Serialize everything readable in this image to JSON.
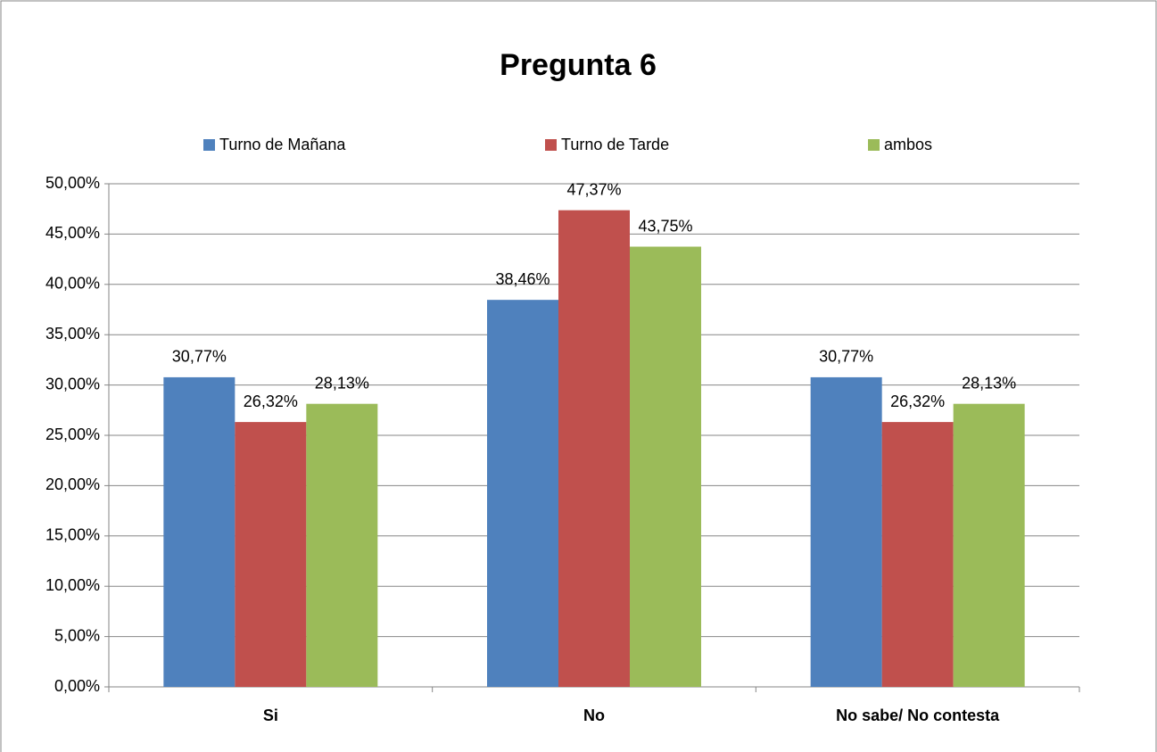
{
  "chart_data": {
    "type": "bar",
    "title": "Pregunta 6",
    "categories": [
      "Si",
      "No",
      "No sabe/ No contesta"
    ],
    "series": [
      {
        "name": "Turno de Mañana",
        "color": "#4f81bd",
        "values": [
          30.77,
          38.46,
          30.77
        ],
        "value_labels": [
          "30,77%",
          "38,46%",
          "30,77%"
        ]
      },
      {
        "name": "Turno de Tarde",
        "color": "#c0504d",
        "values": [
          26.32,
          47.37,
          26.32
        ],
        "value_labels": [
          "26,32%",
          "47,37%",
          "26,32%"
        ]
      },
      {
        "name": "ambos",
        "color": "#9bbb59",
        "values": [
          28.13,
          43.75,
          28.13
        ],
        "value_labels": [
          "28,13%",
          "43,75%",
          "28,13%"
        ]
      }
    ],
    "ylim": [
      0,
      50
    ],
    "yticks": [
      {
        "value": 0,
        "label": "0,00%"
      },
      {
        "value": 5,
        "label": "5,00%"
      },
      {
        "value": 10,
        "label": "10,00%"
      },
      {
        "value": 15,
        "label": "15,00%"
      },
      {
        "value": 20,
        "label": "20,00%"
      },
      {
        "value": 25,
        "label": "25,00%"
      },
      {
        "value": 30,
        "label": "30,00%"
      },
      {
        "value": 35,
        "label": "35,00%"
      },
      {
        "value": 40,
        "label": "40,00%"
      },
      {
        "value": 45,
        "label": "45,00%"
      },
      {
        "value": 50,
        "label": "50,00%"
      }
    ],
    "grid": true,
    "legend": "top"
  }
}
